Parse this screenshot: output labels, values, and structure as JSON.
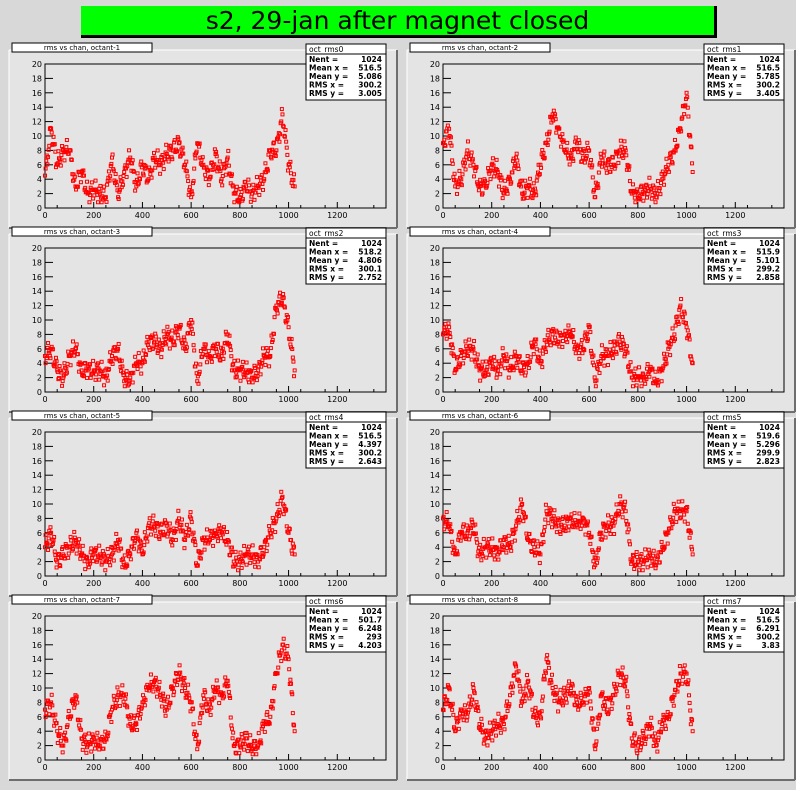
{
  "page_title": "s2, 29-jan after magnet closed",
  "panel_title": "rms vs chan, octant-",
  "stat_labels": [
    "Nent =",
    "Mean x =",
    "Mean y =",
    "RMS x =",
    "RMS y ="
  ],
  "chart_data": [
    {
      "type": "scatter",
      "title": "rms vs chan, octant-1",
      "stats_name": "oct_rms0",
      "stats": [
        "1024",
        "516.5",
        "5.086",
        "300.2",
        "3.005"
      ],
      "xlim": [
        0,
        1400
      ],
      "ylim": [
        0,
        20
      ],
      "x_ticks": [
        0,
        200,
        400,
        600,
        800,
        1000,
        1200
      ],
      "y_ticks": [
        0,
        2,
        4,
        6,
        8,
        10,
        12,
        14,
        16,
        18,
        20
      ],
      "color": "#ff0000",
      "x": [
        0,
        25,
        50,
        75,
        100,
        125,
        150,
        175,
        200,
        225,
        250,
        275,
        300,
        325,
        350,
        375,
        400,
        425,
        450,
        475,
        500,
        525,
        550,
        575,
        600,
        625,
        650,
        675,
        700,
        725,
        750,
        775,
        800,
        825,
        850,
        875,
        900,
        925,
        950,
        975,
        1000,
        1025
      ],
      "y": [
        4.5,
        11,
        6,
        8,
        8,
        3,
        5,
        2,
        2.5,
        2,
        1.5,
        7,
        1.5,
        5,
        7,
        3,
        6,
        4,
        7,
        6,
        7.5,
        8,
        9,
        6,
        1.5,
        9,
        6,
        4,
        7.5,
        4,
        7,
        2,
        1.5,
        3,
        2,
        3,
        4,
        8,
        8,
        13,
        6,
        3
      ]
    },
    {
      "type": "scatter",
      "title": "rms vs chan, octant-2",
      "stats_name": "oct_rms1",
      "stats": [
        "1024",
        "516.5",
        "5.785",
        "300.2",
        "3.405"
      ],
      "xlim": [
        0,
        1400
      ],
      "ylim": [
        0,
        20
      ],
      "x_ticks": [
        0,
        200,
        400,
        600,
        800,
        1000,
        1200
      ],
      "y_ticks": [
        0,
        2,
        4,
        6,
        8,
        10,
        12,
        14,
        16,
        18,
        20
      ],
      "color": "#ff0000",
      "x": [
        0,
        25,
        50,
        75,
        100,
        125,
        150,
        175,
        200,
        225,
        250,
        275,
        300,
        325,
        350,
        375,
        400,
        425,
        450,
        475,
        500,
        525,
        550,
        575,
        600,
        625,
        650,
        675,
        700,
        725,
        750,
        775,
        800,
        825,
        850,
        875,
        900,
        925,
        950,
        975,
        1000,
        1025
      ],
      "y": [
        9,
        11,
        3,
        4,
        8,
        6,
        3,
        3,
        6,
        5,
        2,
        4,
        7,
        2,
        3,
        2,
        6,
        9,
        13,
        11,
        8,
        7,
        9,
        7,
        8,
        1.5,
        7,
        6,
        6,
        8,
        8,
        2,
        2,
        2,
        3,
        1.5,
        4,
        6,
        8,
        11,
        16,
        5
      ]
    },
    {
      "type": "scatter",
      "title": "rms vs chan, octant-3",
      "stats_name": "oct_rms2",
      "stats": [
        "1024",
        "518.2",
        "4.806",
        "300.1",
        "2.752"
      ],
      "xlim": [
        0,
        1400
      ],
      "ylim": [
        0,
        20
      ],
      "x_ticks": [
        0,
        200,
        400,
        600,
        800,
        1000,
        1200
      ],
      "y_ticks": [
        0,
        2,
        4,
        6,
        8,
        10,
        12,
        14,
        16,
        18,
        20
      ],
      "color": "#ff0000",
      "x": [
        0,
        25,
        50,
        75,
        100,
        125,
        150,
        175,
        200,
        225,
        250,
        275,
        300,
        325,
        350,
        375,
        400,
        425,
        450,
        475,
        500,
        525,
        550,
        575,
        600,
        625,
        650,
        675,
        700,
        725,
        750,
        775,
        800,
        825,
        850,
        875,
        900,
        925,
        950,
        975,
        1000,
        1025
      ],
      "y": [
        5,
        6,
        3,
        2,
        5,
        6,
        3,
        3,
        3,
        3,
        2,
        5,
        6,
        1.5,
        2,
        4,
        4,
        7,
        7,
        6,
        8,
        7,
        9,
        6,
        10,
        1.5,
        6,
        5,
        6,
        5,
        8,
        3,
        3,
        3,
        2,
        3,
        5,
        5,
        12,
        13,
        9,
        3
      ]
    },
    {
      "type": "scatter",
      "title": "rms vs chan, octant-4",
      "stats_name": "oct_rms3",
      "stats": [
        "1024",
        "515.9",
        "5.101",
        "299.2",
        "2.858"
      ],
      "xlim": [
        0,
        1400
      ],
      "ylim": [
        0,
        20
      ],
      "x_ticks": [
        0,
        200,
        400,
        600,
        800,
        1000,
        1200
      ],
      "y_ticks": [
        0,
        2,
        4,
        6,
        8,
        10,
        12,
        14,
        16,
        18,
        20
      ],
      "color": "#ff0000",
      "x": [
        0,
        25,
        50,
        75,
        100,
        125,
        150,
        175,
        200,
        225,
        250,
        275,
        300,
        325,
        350,
        375,
        400,
        425,
        450,
        475,
        500,
        525,
        550,
        575,
        600,
        625,
        650,
        675,
        700,
        725,
        750,
        775,
        800,
        825,
        850,
        875,
        900,
        925,
        950,
        975,
        1000,
        1025
      ],
      "y": [
        8,
        9,
        3,
        5,
        6,
        6,
        3,
        3,
        4,
        3,
        5,
        3,
        5,
        3,
        4,
        7,
        4,
        7,
        8,
        7,
        8,
        8,
        6,
        6,
        9,
        1.5,
        5,
        5,
        6,
        7,
        6,
        2,
        2,
        2,
        3,
        1.5,
        3,
        6,
        8,
        12,
        9,
        4
      ]
    },
    {
      "type": "scatter",
      "title": "rms vs chan, octant-5",
      "stats_name": "oct_rms4",
      "stats": [
        "1024",
        "516.5",
        "4.397",
        "300.2",
        "2.643"
      ],
      "xlim": [
        0,
        1400
      ],
      "ylim": [
        0,
        20
      ],
      "x_ticks": [
        0,
        200,
        400,
        600,
        800,
        1000,
        1200
      ],
      "y_ticks": [
        0,
        2,
        4,
        6,
        8,
        10,
        12,
        14,
        16,
        18,
        20
      ],
      "color": "#ff0000",
      "x": [
        0,
        25,
        50,
        75,
        100,
        125,
        150,
        175,
        200,
        225,
        250,
        275,
        300,
        325,
        350,
        375,
        400,
        425,
        450,
        475,
        500,
        525,
        550,
        575,
        600,
        625,
        650,
        675,
        700,
        725,
        750,
        775,
        800,
        825,
        850,
        875,
        900,
        925,
        950,
        975,
        1000,
        1025
      ],
      "y": [
        4,
        6,
        2,
        3,
        4,
        5,
        3,
        2,
        3,
        3,
        2,
        3,
        5,
        1.5,
        3,
        6,
        3,
        7,
        7,
        6,
        7,
        5,
        8,
        5,
        8,
        1.5,
        5,
        5,
        6,
        6,
        5,
        2,
        2,
        3,
        3,
        2,
        4,
        6,
        8,
        11,
        6,
        3
      ]
    },
    {
      "type": "scatter",
      "title": "rms vs chan, octant-6",
      "stats_name": "oct_rms5",
      "stats": [
        "1024",
        "519.6",
        "5.296",
        "299.9",
        "2.823"
      ],
      "xlim": [
        0,
        1400
      ],
      "ylim": [
        0,
        20
      ],
      "x_ticks": [
        0,
        200,
        400,
        600,
        800,
        1000,
        1200
      ],
      "y_ticks": [
        0,
        2,
        4,
        6,
        8,
        10,
        12,
        14,
        16,
        18,
        20
      ],
      "color": "#ff0000",
      "x": [
        0,
        25,
        50,
        75,
        100,
        125,
        150,
        175,
        200,
        225,
        250,
        275,
        300,
        325,
        350,
        375,
        400,
        425,
        450,
        475,
        500,
        525,
        550,
        575,
        600,
        625,
        650,
        675,
        700,
        725,
        750,
        775,
        800,
        825,
        850,
        875,
        900,
        925,
        950,
        975,
        1000,
        1025
      ],
      "y": [
        8,
        7,
        3,
        6,
        6,
        7,
        3,
        4,
        4,
        3,
        5,
        4,
        7,
        10,
        5,
        4,
        3,
        9,
        8,
        7,
        7,
        8,
        7,
        8,
        6,
        1.5,
        6,
        7,
        7,
        10,
        9,
        2,
        2,
        2,
        3,
        1.5,
        4,
        6,
        9,
        9,
        9,
        3
      ]
    },
    {
      "type": "scatter",
      "title": "rms vs chan, octant-7",
      "stats_name": "oct_rms6",
      "stats": [
        "1024",
        "501.7",
        "6.248",
        "293",
        "4.203"
      ],
      "xlim": [
        0,
        1400
      ],
      "ylim": [
        0,
        20
      ],
      "x_ticks": [
        0,
        200,
        400,
        600,
        800,
        1000,
        1200
      ],
      "y_ticks": [
        0,
        2,
        4,
        6,
        8,
        10,
        12,
        14,
        16,
        18,
        20
      ],
      "color": "#ff0000",
      "x": [
        0,
        25,
        50,
        75,
        100,
        125,
        150,
        175,
        200,
        225,
        250,
        275,
        300,
        325,
        350,
        375,
        400,
        425,
        450,
        475,
        500,
        525,
        550,
        575,
        600,
        625,
        650,
        675,
        700,
        725,
        750,
        775,
        800,
        825,
        850,
        875,
        900,
        925,
        950,
        975,
        1000,
        1025
      ],
      "y": [
        7,
        8,
        4,
        2,
        6,
        9,
        3,
        2,
        3,
        2,
        3,
        7,
        9,
        9,
        5,
        5,
        8,
        10,
        11,
        9,
        7,
        10,
        12,
        10,
        8,
        1.5,
        9,
        7,
        10,
        9,
        11,
        2,
        2,
        3,
        1.5,
        2,
        5,
        6,
        12,
        16,
        14,
        4
      ]
    },
    {
      "type": "scatter",
      "title": "rms vs chan, octant-8",
      "stats_name": "oct_rms7",
      "stats": [
        "1024",
        "516.5",
        "6.291",
        "300.2",
        "3.83"
      ],
      "xlim": [
        0,
        1400
      ],
      "ylim": [
        0,
        20
      ],
      "x_ticks": [
        0,
        200,
        400,
        600,
        800,
        1000,
        1200
      ],
      "y_ticks": [
        0,
        2,
        4,
        6,
        8,
        10,
        12,
        14,
        16,
        18,
        20
      ],
      "color": "#ff0000",
      "x": [
        0,
        25,
        50,
        75,
        100,
        125,
        150,
        175,
        200,
        225,
        250,
        275,
        300,
        325,
        350,
        375,
        400,
        425,
        450,
        475,
        500,
        525,
        550,
        575,
        600,
        625,
        650,
        675,
        700,
        725,
        750,
        775,
        800,
        825,
        850,
        875,
        900,
        925,
        950,
        975,
        1000,
        1025
      ],
      "y": [
        7,
        10,
        4,
        7,
        6,
        10,
        5,
        3,
        4,
        5,
        5,
        9,
        13,
        8,
        11,
        6,
        6,
        14,
        10,
        8,
        9,
        10,
        8,
        8,
        10,
        1.5,
        9,
        7,
        9,
        12,
        11,
        3,
        2,
        3,
        5,
        2,
        5,
        6,
        9,
        12,
        12,
        4
      ]
    }
  ]
}
